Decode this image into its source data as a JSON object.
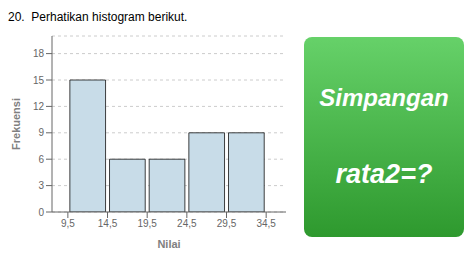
{
  "chart_data": {
    "type": "histogram",
    "title": "20.  Perhatikan histogram berikut.",
    "xlabel": "Nilai",
    "ylabel": "Frekuensi",
    "bins": [
      9.5,
      14.5,
      19.5,
      24.5,
      29.5,
      34.5
    ],
    "values": [
      15,
      6,
      6,
      9,
      9
    ],
    "color": "#c8dce8",
    "xlim": [
      7.5,
      37.0
    ],
    "ylim": [
      0,
      20
    ],
    "xticks": [
      {
        "value": 9.5,
        "label": "9,5"
      },
      {
        "value": 14.5,
        "label": "14,5"
      },
      {
        "value": 19.5,
        "label": "19,5"
      },
      {
        "value": 24.5,
        "label": "24,5"
      },
      {
        "value": 29.5,
        "label": "29,5"
      },
      {
        "value": 34.5,
        "label": "34,5"
      }
    ],
    "yticks": [
      0,
      3,
      6,
      9,
      12,
      15,
      18
    ],
    "grid": true,
    "annotations": [
      "Simpangan",
      "rata2=?"
    ]
  }
}
